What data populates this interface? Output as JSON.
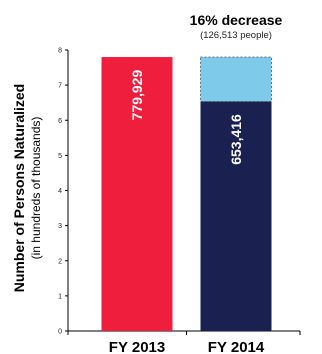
{
  "chart_data": {
    "type": "bar",
    "ylabel": "Number of Persons Naturalized",
    "ylabel_sub": "(in hundreds of thousands)",
    "ylim": [
      0,
      8
    ],
    "yticks": [
      0,
      1,
      2,
      3,
      4,
      5,
      6,
      7,
      8
    ],
    "categories": [
      "FY 2013",
      "FY 2014"
    ],
    "values": [
      7.79929,
      6.53416
    ],
    "value_labels": [
      "779,929",
      "653,416"
    ],
    "bar_colors": [
      "#ee1e3c",
      "#1a2150"
    ],
    "decrease": {
      "value": 1.26513,
      "color": "#7ecaea",
      "title": "16% decrease",
      "subtitle": "(126,513 people)"
    }
  }
}
